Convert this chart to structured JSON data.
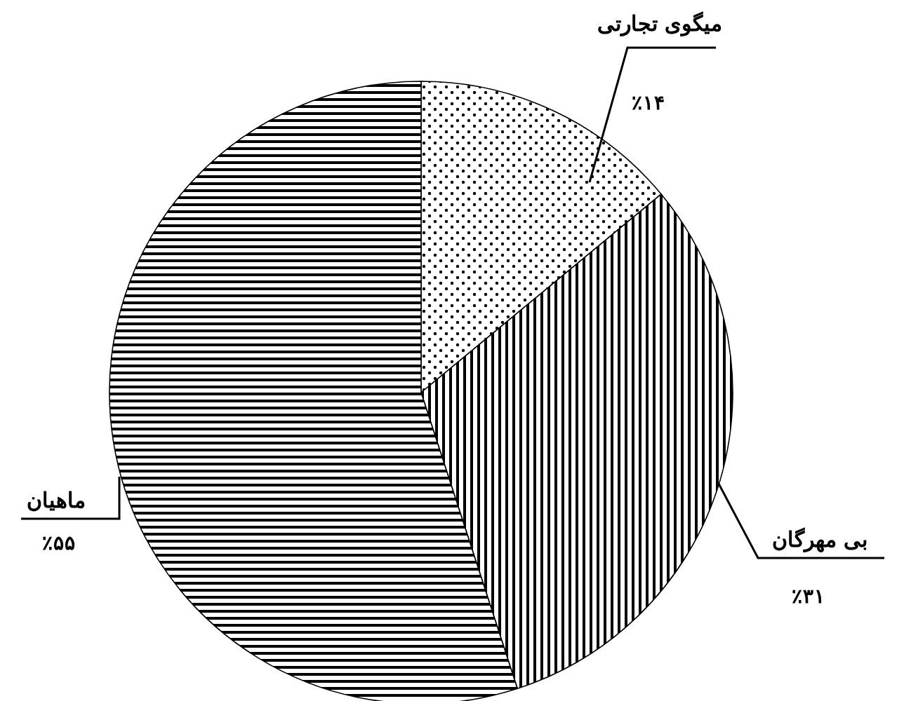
{
  "chart_data": {
    "type": "pie",
    "categories": [
      "میگوی تجارتی",
      "بی مهرگان",
      "ماهیان"
    ],
    "values": [
      14,
      31,
      55
    ],
    "colors": [
      "#000000",
      "#000000",
      "#000000"
    ],
    "value_labels": [
      "٪۱۴",
      "٪۳۱",
      "٪۵۵"
    ]
  }
}
